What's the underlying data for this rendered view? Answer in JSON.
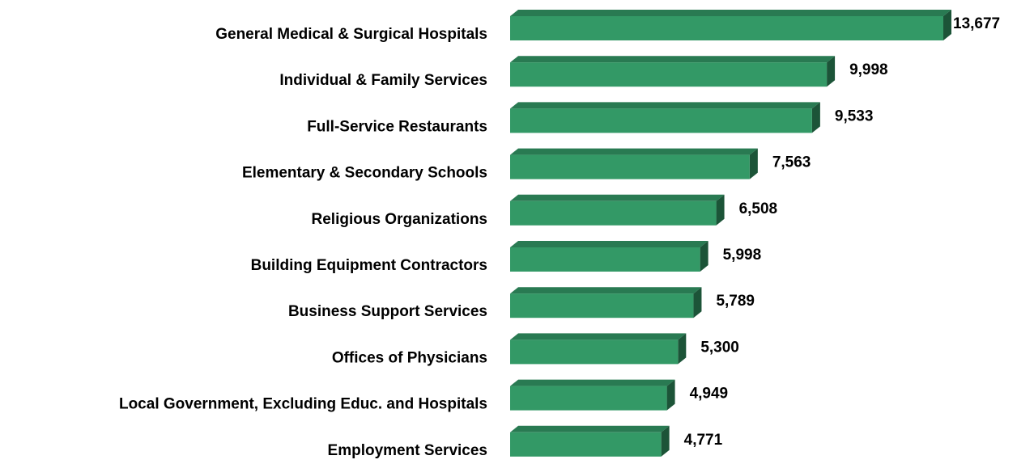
{
  "chart_data": {
    "type": "bar",
    "orientation": "horizontal",
    "categories": [
      "General Medical & Surgical Hospitals",
      "Individual & Family Services",
      "Full-Service Restaurants",
      "Elementary & Secondary Schools",
      "Religious Organizations",
      "Building Equipment Contractors",
      "Business Support Services",
      "Offices of Physicians",
      "Local Government, Excluding Educ. and Hospitals",
      "Employment Services"
    ],
    "values": [
      13677,
      9998,
      9533,
      7563,
      6508,
      5998,
      5789,
      5300,
      4949,
      4771
    ],
    "value_labels": [
      "13,677",
      "9,998",
      "9,533",
      "7,563",
      "6,508",
      "5,998",
      "5,789",
      "5,300",
      "4,949",
      "4,771"
    ],
    "color": "#339966"
  }
}
